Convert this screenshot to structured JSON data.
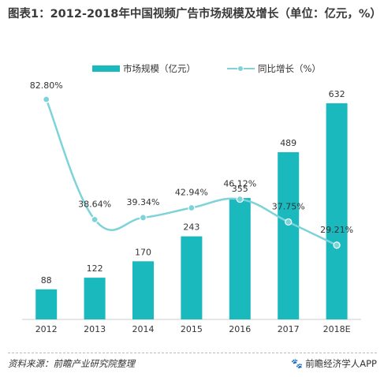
{
  "title": "图表1：2012-2018年中国视频广告市场规模及增长（单位：亿元，%）",
  "legend": {
    "bar_label": "市场规模（亿元）",
    "line_label": "同比增长（%）"
  },
  "footer": {
    "source": "资料来源：前瞻产业研究院整理",
    "brand": "前瞻经济学人APP",
    "brand_icon": "paw-icon"
  },
  "colors": {
    "bar": "#1AB9BE",
    "line": "#7DD3D8",
    "text": "#333333"
  },
  "chart_data": {
    "type": "bar",
    "categories": [
      "2012",
      "2013",
      "2014",
      "2015",
      "2016",
      "2017",
      "2018E"
    ],
    "series": [
      {
        "name": "市场规模（亿元）",
        "type": "bar",
        "values": [
          88,
          122,
          170,
          243,
          355,
          489,
          632
        ],
        "labels": [
          "88",
          "122",
          "170",
          "243",
          "355",
          "489",
          "632"
        ]
      },
      {
        "name": "同比增长（%）",
        "type": "line",
        "smooth": true,
        "values": [
          82.8,
          38.64,
          39.34,
          42.94,
          46.12,
          37.75,
          29.21
        ],
        "labels": [
          "82.80%",
          "38.64%",
          "39.34%",
          "42.94%",
          "46.12%",
          "37.75%",
          "29.21%"
        ]
      }
    ],
    "legend_position": "top-center",
    "grid": false
  }
}
